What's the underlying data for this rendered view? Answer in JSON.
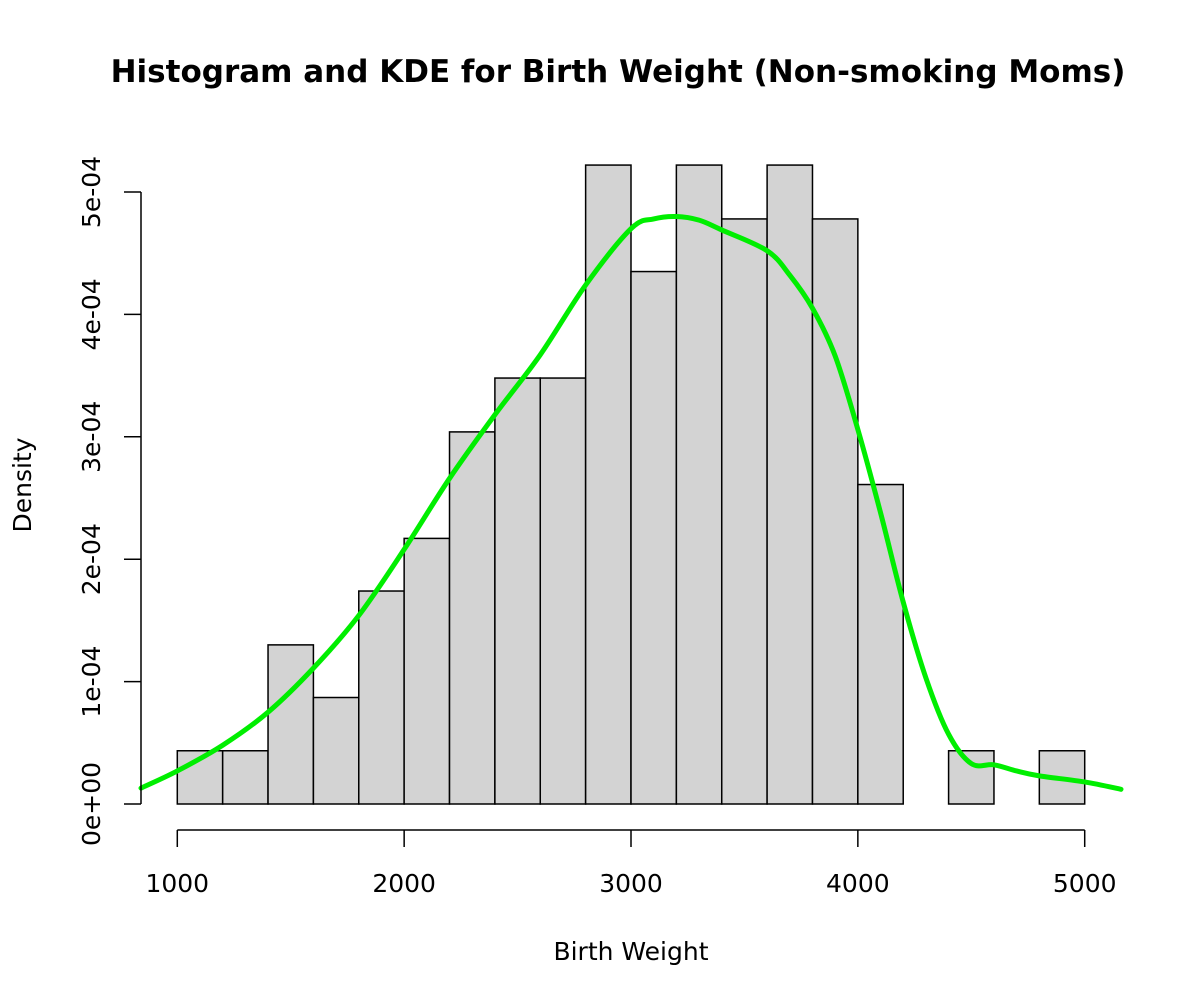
{
  "chart_data": {
    "type": "bar",
    "title": "Histogram and KDE for Birth Weight (Non-smoking Moms)",
    "xlabel": "Birth Weight",
    "ylabel": "Density",
    "xlim": [
      840,
      5160
    ],
    "ylim": [
      0,
      0.0005
    ],
    "x_ticks": [
      1000,
      2000,
      3000,
      4000,
      5000
    ],
    "x_tick_labels": [
      "1000",
      "2000",
      "3000",
      "4000",
      "5000"
    ],
    "y_ticks": [
      0,
      0.0001,
      0.0002,
      0.0003,
      0.0004,
      0.0005
    ],
    "y_tick_labels": [
      "0e+00",
      "1e-04",
      "2e-04",
      "3e-04",
      "4e-04",
      "5e-04"
    ],
    "grid": false,
    "bins": [
      {
        "start": 1000,
        "end": 1200,
        "density": 4.35e-05
      },
      {
        "start": 1200,
        "end": 1400,
        "density": 4.35e-05
      },
      {
        "start": 1400,
        "end": 1600,
        "density": 0.00013
      },
      {
        "start": 1600,
        "end": 1800,
        "density": 8.7e-05
      },
      {
        "start": 1800,
        "end": 2000,
        "density": 0.000174
      },
      {
        "start": 2000,
        "end": 2200,
        "density": 0.000217
      },
      {
        "start": 2200,
        "end": 2400,
        "density": 0.000304
      },
      {
        "start": 2400,
        "end": 2600,
        "density": 0.000348
      },
      {
        "start": 2600,
        "end": 2800,
        "density": 0.000348
      },
      {
        "start": 2800,
        "end": 3000,
        "density": 0.000522
      },
      {
        "start": 3000,
        "end": 3200,
        "density": 0.000435
      },
      {
        "start": 3200,
        "end": 3400,
        "density": 0.000522
      },
      {
        "start": 3400,
        "end": 3600,
        "density": 0.000478
      },
      {
        "start": 3600,
        "end": 3800,
        "density": 0.000522
      },
      {
        "start": 3800,
        "end": 4000,
        "density": 0.000478
      },
      {
        "start": 4000,
        "end": 4200,
        "density": 0.000261
      },
      {
        "start": 4200,
        "end": 4400,
        "density": 0
      },
      {
        "start": 4400,
        "end": 4600,
        "density": 4.35e-05
      },
      {
        "start": 4600,
        "end": 4800,
        "density": 0
      },
      {
        "start": 4800,
        "end": 5000,
        "density": 4.35e-05
      }
    ],
    "kde": {
      "color": "#00ee00",
      "x": [
        840,
        1000,
        1200,
        1400,
        1600,
        1800,
        2000,
        2200,
        2400,
        2600,
        2800,
        3000,
        3100,
        3200,
        3300,
        3400,
        3600,
        3700,
        3800,
        3900,
        4000,
        4100,
        4200,
        4300,
        4400,
        4500,
        4600,
        4700,
        4800,
        5000,
        5160
      ],
      "y": [
        1.3e-05,
        2.7e-05,
        4.8e-05,
        7.5e-05,
        0.000111,
        0.000154,
        0.000208,
        0.000266,
        0.000318,
        0.000367,
        0.000424,
        0.00047,
        0.000478,
        0.00048,
        0.000477,
        0.000469,
        0.000452,
        0.000432,
        0.000405,
        0.000366,
        0.000306,
        0.000238,
        0.000165,
        0.000103,
        5.7e-05,
        3.3e-05,
        3.2e-05,
        2.7e-05,
        2.3e-05,
        1.8e-05,
        1.2e-05
      ]
    }
  }
}
